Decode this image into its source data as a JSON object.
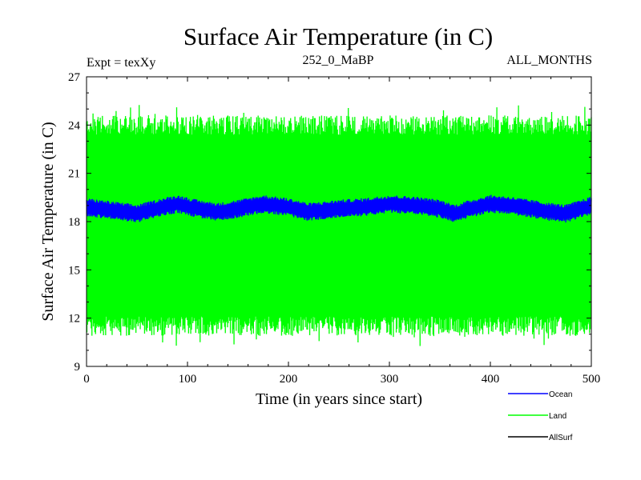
{
  "chart_data": {
    "type": "line",
    "title": "Surface Air Temperature (in C)",
    "subtitle_left": "Expt = texXy",
    "subtitle_center": "252_0_MaBP",
    "subtitle_right": "ALL_MONTHS",
    "xlabel": "Time (in years since start)",
    "ylabel": "Surface Air Temperature (in C)",
    "xlim": [
      0,
      500
    ],
    "ylim": [
      9,
      27
    ],
    "xticks": [
      0,
      100,
      200,
      300,
      400,
      500
    ],
    "xtick_labels": [
      "0",
      "100",
      "200",
      "300",
      "400",
      "500"
    ],
    "yticks": [
      9,
      12,
      15,
      18,
      21,
      24,
      27
    ],
    "ytick_labels": [
      "9",
      "12",
      "15",
      "18",
      "21",
      "24",
      "27"
    ],
    "grid": false,
    "legend_position": "bottom-right",
    "series": [
      {
        "name": "Land",
        "color": "#00ff00",
        "style": "annual-cycle-band",
        "mean": 18.5,
        "typical_min": 11.5,
        "typical_max": 24.0,
        "extreme_min": 10.2,
        "extreme_max": 25.3
      },
      {
        "name": "Ocean",
        "color": "#0000ff",
        "style": "annual-cycle-band",
        "trend": [
          [
            0,
            18.9
          ],
          [
            25,
            18.7
          ],
          [
            50,
            18.5
          ],
          [
            75,
            18.9
          ],
          [
            90,
            19.1
          ],
          [
            110,
            18.8
          ],
          [
            130,
            18.6
          ],
          [
            150,
            18.8
          ],
          [
            175,
            19.1
          ],
          [
            200,
            18.9
          ],
          [
            220,
            18.6
          ],
          [
            250,
            18.8
          ],
          [
            275,
            18.9
          ],
          [
            300,
            19.1
          ],
          [
            325,
            19.0
          ],
          [
            350,
            18.8
          ],
          [
            365,
            18.5
          ],
          [
            380,
            18.8
          ],
          [
            400,
            19.1
          ],
          [
            420,
            19.0
          ],
          [
            440,
            18.8
          ],
          [
            460,
            18.6
          ],
          [
            475,
            18.5
          ],
          [
            490,
            18.8
          ],
          [
            500,
            19.0
          ]
        ],
        "half_width": 0.45
      },
      {
        "name": "AllSurf",
        "color": "#000000",
        "style": "not-visible"
      }
    ],
    "legend": [
      {
        "label": "Ocean",
        "color": "#0000ff"
      },
      {
        "label": "Land",
        "color": "#00ff00"
      },
      {
        "label": "AllSurf",
        "color": "#000000"
      }
    ]
  }
}
